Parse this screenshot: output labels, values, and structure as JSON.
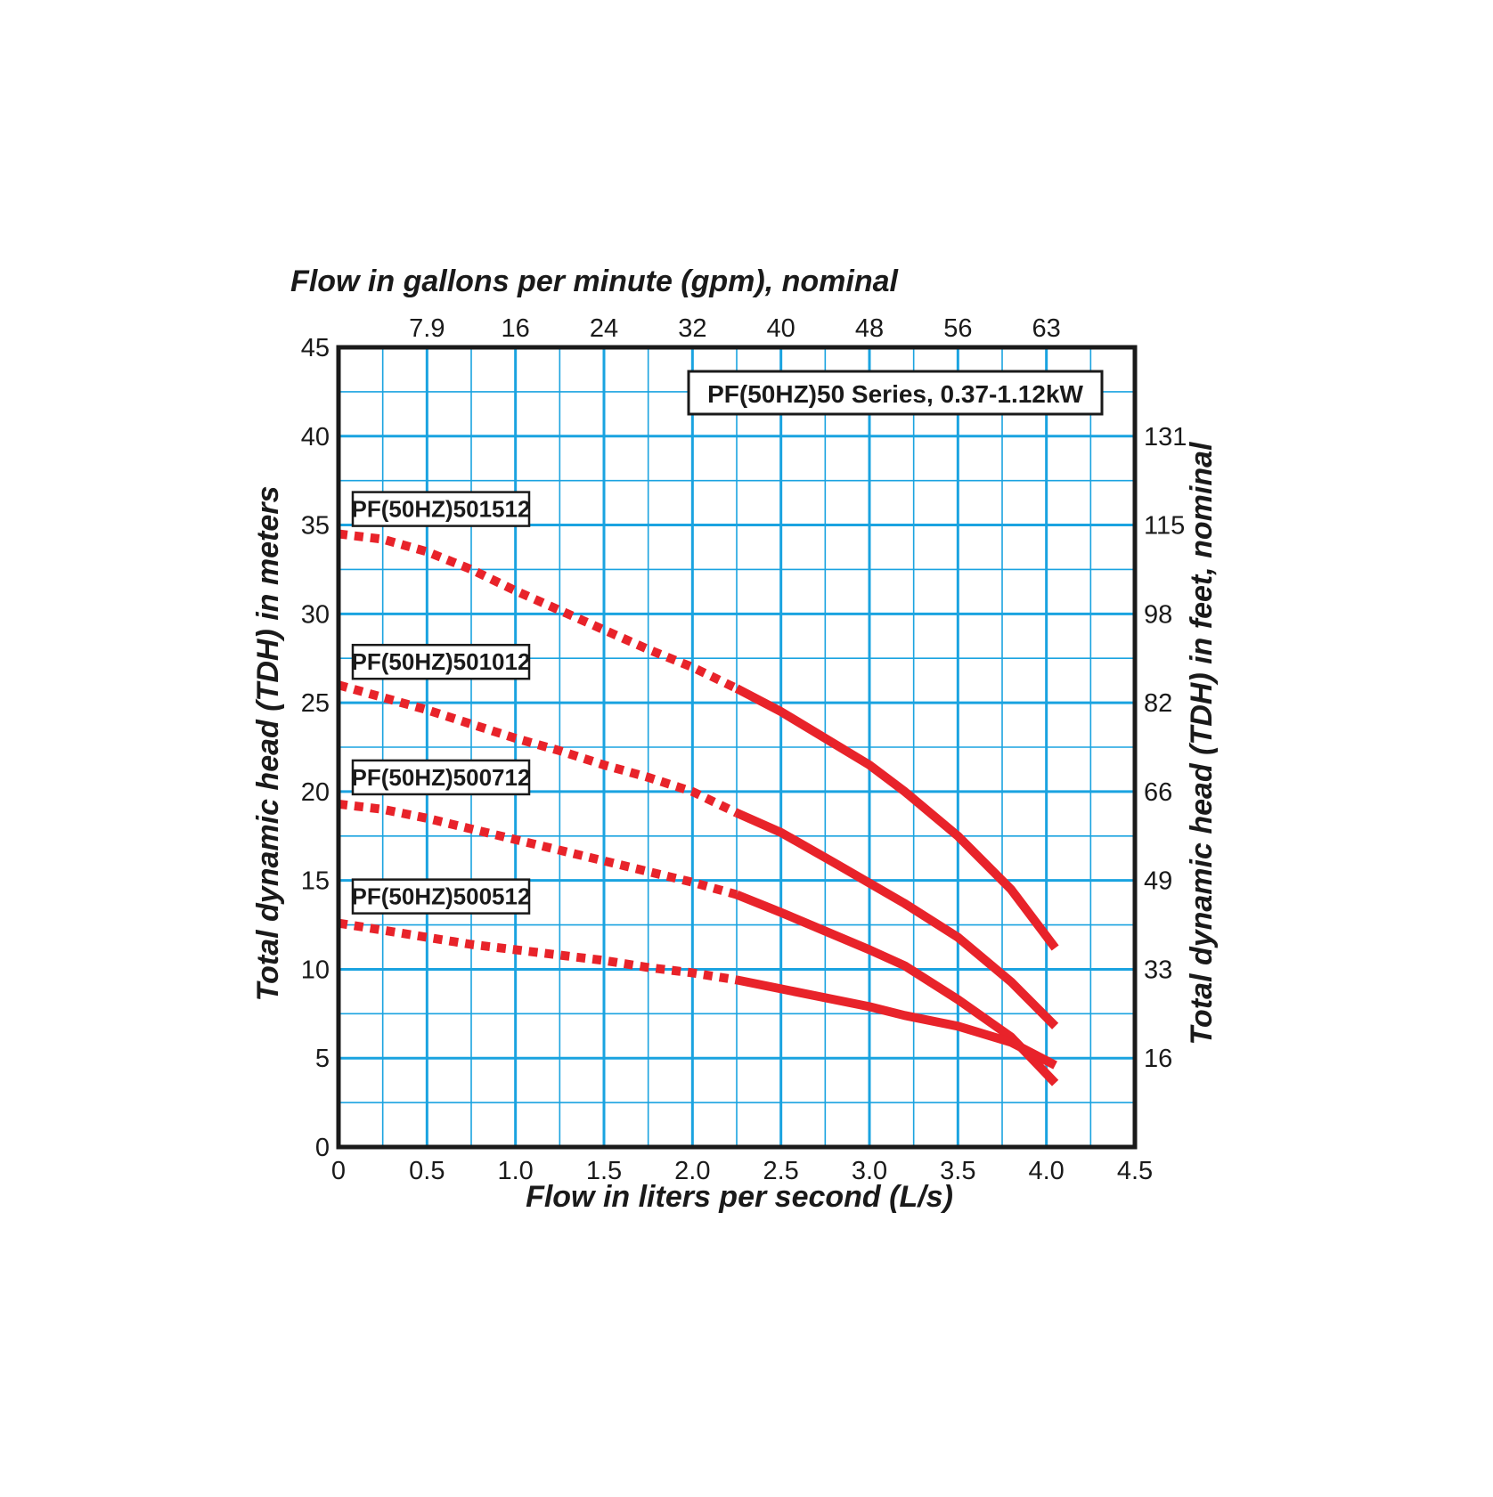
{
  "chart_data": {
    "type": "line",
    "title": "PF(50HZ)50 Series, 0.37-1.12kW",
    "xlabel": "Flow in liters per second (L/s)",
    "ylabel": "Total dynamic head (TDH) in meters",
    "x2label": "Flow in gallons per minute (gpm), nominal",
    "y2label": "Total dynamic head (TDH) in feet, nominal",
    "xlim": [
      0,
      4.5
    ],
    "ylim": [
      0,
      45
    ],
    "x_ticks": [
      "0",
      "0.5",
      "1.0",
      "1.5",
      "2.0",
      "2.5",
      "3.0",
      "3.5",
      "4.0",
      "4.5"
    ],
    "y_ticks": [
      "0",
      "5",
      "10",
      "15",
      "20",
      "25",
      "30",
      "35",
      "40",
      "45"
    ],
    "x2_ticks": [
      {
        "x": 0.5,
        "label": "7.9"
      },
      {
        "x": 1.0,
        "label": "16"
      },
      {
        "x": 1.5,
        "label": "24"
      },
      {
        "x": 2.0,
        "label": "32"
      },
      {
        "x": 2.5,
        "label": "40"
      },
      {
        "x": 3.0,
        "label": "48"
      },
      {
        "x": 3.5,
        "label": "56"
      },
      {
        "x": 4.0,
        "label": "63"
      }
    ],
    "y2_ticks": [
      {
        "y": 5,
        "label": "16"
      },
      {
        "y": 10,
        "label": "33"
      },
      {
        "y": 15,
        "label": "49"
      },
      {
        "y": 20,
        "label": "66"
      },
      {
        "y": 25,
        "label": "82"
      },
      {
        "y": 30,
        "label": "98"
      },
      {
        "y": 35,
        "label": "115"
      },
      {
        "y": 40,
        "label": "131"
      }
    ],
    "grid": true,
    "colors": {
      "grid": "#1aa3e0",
      "curve": "#e8232a",
      "frame": "#1a1a1a"
    },
    "series": [
      {
        "name": "PF(50HZ)501512",
        "label_y": 35.9,
        "dotted": [
          [
            0,
            34.5
          ],
          [
            0.25,
            34.2
          ],
          [
            0.5,
            33.5
          ],
          [
            0.75,
            32.5
          ],
          [
            1.0,
            31.3
          ],
          [
            1.25,
            30.2
          ],
          [
            1.5,
            29.1
          ],
          [
            1.75,
            28.0
          ],
          [
            2.0,
            27.0
          ],
          [
            2.25,
            25.8
          ]
        ],
        "solid": [
          [
            2.25,
            25.8
          ],
          [
            2.5,
            24.5
          ],
          [
            3.0,
            21.5
          ],
          [
            3.2,
            20.0
          ],
          [
            3.5,
            17.5
          ],
          [
            3.8,
            14.5
          ],
          [
            4.05,
            11.2
          ]
        ]
      },
      {
        "name": "PF(50HZ)501012",
        "label_y": 27.3,
        "dotted": [
          [
            0,
            26.0
          ],
          [
            0.25,
            25.3
          ],
          [
            0.5,
            24.6
          ],
          [
            0.75,
            23.8
          ],
          [
            1.0,
            23.0
          ],
          [
            1.25,
            22.3
          ],
          [
            1.5,
            21.5
          ],
          [
            1.75,
            20.8
          ],
          [
            2.0,
            20.0
          ],
          [
            2.25,
            18.8
          ]
        ],
        "solid": [
          [
            2.25,
            18.8
          ],
          [
            2.5,
            17.7
          ],
          [
            2.8,
            16.0
          ],
          [
            3.2,
            13.7
          ],
          [
            3.5,
            11.8
          ],
          [
            3.8,
            9.3
          ],
          [
            4.05,
            6.8
          ]
        ]
      },
      {
        "name": "PF(50HZ)500712",
        "label_y": 20.8,
        "dotted": [
          [
            0,
            19.3
          ],
          [
            0.25,
            19.0
          ],
          [
            0.5,
            18.5
          ],
          [
            0.75,
            17.9
          ],
          [
            1.0,
            17.3
          ],
          [
            1.25,
            16.7
          ],
          [
            1.5,
            16.1
          ],
          [
            1.75,
            15.5
          ],
          [
            2.0,
            14.9
          ],
          [
            2.25,
            14.2
          ]
        ],
        "solid": [
          [
            2.25,
            14.2
          ],
          [
            2.5,
            13.2
          ],
          [
            3.0,
            11.1
          ],
          [
            3.2,
            10.2
          ],
          [
            3.5,
            8.3
          ],
          [
            3.8,
            6.2
          ],
          [
            4.05,
            3.6
          ]
        ]
      },
      {
        "name": "PF(50HZ)500512",
        "label_y": 14.1,
        "dotted": [
          [
            0,
            12.6
          ],
          [
            0.25,
            12.2
          ],
          [
            0.5,
            11.8
          ],
          [
            0.75,
            11.4
          ],
          [
            1.0,
            11.1
          ],
          [
            1.25,
            10.8
          ],
          [
            1.5,
            10.5
          ],
          [
            1.75,
            10.1
          ],
          [
            2.0,
            9.8
          ],
          [
            2.25,
            9.4
          ]
        ],
        "solid": [
          [
            2.25,
            9.4
          ],
          [
            2.5,
            8.9
          ],
          [
            3.0,
            7.9
          ],
          [
            3.2,
            7.4
          ],
          [
            3.5,
            6.8
          ],
          [
            3.8,
            5.9
          ],
          [
            4.05,
            4.6
          ]
        ]
      }
    ]
  }
}
